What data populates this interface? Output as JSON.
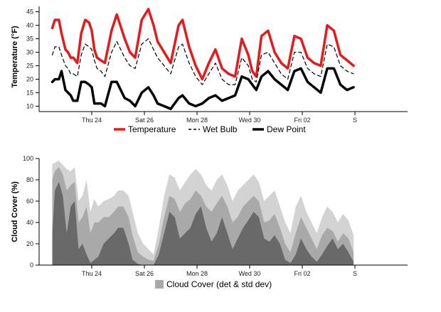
{
  "chart_data": [
    {
      "type": "line",
      "ylabel": "Temperature (°F)",
      "ylim": [
        8,
        47
      ],
      "yticks": [
        10,
        15,
        20,
        25,
        30,
        35,
        40,
        45
      ],
      "xlim": [
        0,
        14
      ],
      "xticks": [
        {
          "x": 2,
          "label": "Thu 24"
        },
        {
          "x": 4,
          "label": "Sat 26"
        },
        {
          "x": 6,
          "label": "Mon 28"
        },
        {
          "x": 8,
          "label": "Wed 30"
        },
        {
          "x": 10,
          "label": "Fri 02"
        },
        {
          "x": 12,
          "label": "S"
        }
      ],
      "x": [
        0.5,
        0.6,
        0.75,
        0.85,
        1,
        1.1,
        1.2,
        1.3,
        1.45,
        1.6,
        1.75,
        1.9,
        2.0,
        2.1,
        2.2,
        2.35,
        2.5,
        2.75,
        2.95,
        3.25,
        3.45,
        3.65,
        3.9,
        4.15,
        4.35,
        4.5,
        4.75,
        5.0,
        5.3,
        5.45,
        5.7,
        5.95,
        6.2,
        6.45,
        6.7,
        6.95,
        7.2,
        7.45,
        7.7,
        7.95,
        8.1,
        8.25,
        8.45,
        8.7,
        8.95,
        9.2,
        9.45,
        9.7,
        9.95,
        10.2,
        10.45,
        10.7,
        10.95,
        11.2,
        11.45,
        11.7,
        11.95
      ],
      "series": [
        {
          "name": "Temperature",
          "color": "#e41a1c",
          "dash": "none",
          "width": 3.5,
          "values": [
            39,
            42,
            42,
            37,
            31,
            30,
            28,
            28,
            26,
            37,
            42,
            41,
            38,
            31,
            28,
            27,
            26,
            38,
            44,
            35,
            30,
            28,
            42,
            46,
            40,
            34,
            30,
            26,
            40,
            42,
            32,
            25,
            20,
            26,
            31,
            24,
            22,
            21,
            35,
            29,
            23,
            21,
            36,
            38,
            30,
            26,
            24,
            36,
            35,
            28,
            26,
            25,
            40,
            38,
            29,
            27,
            25
          ]
        },
        {
          "name": "Wet Bulb",
          "color": "#000000",
          "dash": "5,4",
          "width": 1.2,
          "values": [
            29,
            32,
            32,
            29,
            25,
            24,
            22,
            22,
            21,
            29,
            33,
            32,
            31,
            27,
            24,
            23,
            21,
            30,
            34,
            28,
            25,
            24,
            33,
            35,
            31,
            28,
            25,
            22,
            32,
            33,
            26,
            21,
            18,
            22,
            26,
            20,
            18,
            18,
            28,
            25,
            20,
            19,
            29,
            30,
            26,
            22,
            20,
            30,
            30,
            24,
            22,
            21,
            33,
            32,
            25,
            23,
            22
          ]
        },
        {
          "name": "Dew Point",
          "color": "#000000",
          "dash": "none",
          "width": 3.5,
          "values": [
            19,
            20,
            20,
            23,
            16,
            15,
            14,
            12,
            12,
            19,
            19,
            18,
            17,
            11,
            11,
            11,
            10,
            19,
            19,
            13,
            12,
            10,
            15,
            17,
            14,
            11,
            10,
            9,
            13,
            14,
            11,
            10,
            11,
            13,
            14,
            12,
            13,
            14,
            21,
            20,
            18,
            16,
            21,
            23,
            20,
            18,
            16,
            23,
            24,
            19,
            17,
            15,
            24,
            24,
            18,
            16,
            17
          ]
        }
      ],
      "legend": [
        {
          "name": "Temperature",
          "style": "solid-red"
        },
        {
          "name": "Wet Bulb",
          "style": "dashed-black"
        },
        {
          "name": "Dew Point",
          "style": "solid-black"
        }
      ]
    },
    {
      "type": "area",
      "ylabel": "Cloud Cover (%)",
      "ylim": [
        0,
        100
      ],
      "yticks": [
        0,
        20,
        40,
        60,
        80,
        100
      ],
      "xlim": [
        0,
        14
      ],
      "xticks": [
        {
          "x": 2,
          "label": "Thu 24"
        },
        {
          "x": 4,
          "label": "Sat 26"
        },
        {
          "x": 6,
          "label": "Mon 28"
        },
        {
          "x": 8,
          "label": "Wed 30"
        },
        {
          "x": 10,
          "label": "Fri 02"
        },
        {
          "x": 12,
          "label": "S"
        }
      ],
      "x": [
        0.5,
        0.6,
        0.75,
        0.9,
        1.05,
        1.2,
        1.35,
        1.5,
        1.65,
        1.8,
        1.95,
        2.1,
        2.25,
        2.45,
        2.65,
        2.85,
        3.0,
        3.2,
        3.4,
        3.55,
        3.75,
        3.95,
        4.15,
        4.35,
        4.55,
        4.75,
        4.95,
        5.15,
        5.35,
        5.55,
        5.75,
        5.95,
        6.15,
        6.35,
        6.55,
        6.75,
        6.95,
        7.15,
        7.35,
        7.55,
        7.75,
        7.95,
        8.15,
        8.35,
        8.55,
        8.75,
        8.95,
        9.15,
        9.35,
        9.55,
        9.75,
        9.95,
        10.15,
        10.35,
        10.55,
        10.75,
        10.95,
        11.15,
        11.35,
        11.55,
        11.75,
        11.95
      ],
      "series": [
        {
          "name": "Cloud Cover (+std dev)",
          "color": "#d3d3d3",
          "values": [
            95,
            96,
            98,
            94,
            90,
            88,
            92,
            60,
            65,
            80,
            50,
            62,
            55,
            60,
            62,
            65,
            70,
            70,
            65,
            50,
            30,
            20,
            15,
            10,
            35,
            65,
            85,
            82,
            70,
            78,
            85,
            90,
            85,
            75,
            70,
            80,
            85,
            75,
            60,
            70,
            75,
            80,
            85,
            78,
            60,
            65,
            70,
            55,
            40,
            30,
            55,
            65,
            50,
            40,
            30,
            45,
            55,
            50,
            40,
            48,
            42,
            28
          ]
        },
        {
          "name": "Cloud Cover (det)",
          "color": "#a9a9a9",
          "values": [
            80,
            88,
            92,
            85,
            70,
            75,
            78,
            40,
            45,
            55,
            30,
            40,
            40,
            45,
            45,
            50,
            55,
            55,
            45,
            28,
            12,
            8,
            5,
            4,
            20,
            45,
            65,
            62,
            50,
            58,
            62,
            70,
            65,
            55,
            50,
            58,
            65,
            55,
            40,
            45,
            55,
            60,
            65,
            60,
            40,
            42,
            48,
            35,
            20,
            12,
            30,
            45,
            35,
            25,
            15,
            28,
            35,
            32,
            22,
            30,
            25,
            12
          ]
        },
        {
          "name": "Cloud Cover (-std dev)",
          "color": "#696969",
          "values": [
            30,
            70,
            78,
            65,
            30,
            55,
            60,
            15,
            20,
            10,
            2,
            5,
            8,
            20,
            25,
            30,
            35,
            35,
            20,
            5,
            1,
            0,
            0,
            0,
            10,
            30,
            50,
            45,
            25,
            30,
            35,
            48,
            55,
            35,
            22,
            30,
            45,
            30,
            15,
            25,
            35,
            42,
            50,
            45,
            25,
            22,
            28,
            20,
            5,
            2,
            10,
            25,
            15,
            8,
            3,
            10,
            18,
            25,
            15,
            20,
            12,
            3
          ]
        }
      ],
      "legend": [
        {
          "name": "Cloud Cover (det & std dev)",
          "style": "grey-box"
        }
      ]
    }
  ]
}
